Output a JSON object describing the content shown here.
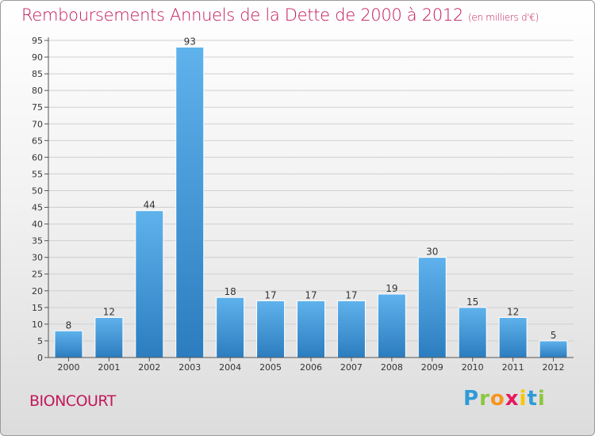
{
  "header": {
    "title": "Remboursements Annuels de la Dette de 2000 à 2012",
    "subtitle": "(en milliers d'€)"
  },
  "footer": {
    "commune": "BIONCOURT",
    "logo": "Proxiti"
  },
  "colors": {
    "title": "#c2185b",
    "bar_top": "#5fb2ec",
    "bar_bottom": "#2c7dbf"
  },
  "chart_data": {
    "type": "bar",
    "title": "Remboursements Annuels de la Dette de 2000 à 2012",
    "subtitle": "(en milliers d'€)",
    "categories": [
      "2000",
      "2001",
      "2002",
      "2003",
      "2004",
      "2005",
      "2006",
      "2007",
      "2008",
      "2009",
      "2010",
      "2011",
      "2012"
    ],
    "values": [
      8,
      12,
      44,
      93,
      18,
      17,
      17,
      17,
      19,
      30,
      15,
      12,
      5
    ],
    "ylim": [
      0,
      95
    ],
    "yticks": [
      0,
      5,
      10,
      15,
      20,
      25,
      30,
      35,
      40,
      45,
      50,
      55,
      60,
      65,
      70,
      75,
      80,
      85,
      90,
      95
    ],
    "grid": true,
    "data_labels": true
  }
}
